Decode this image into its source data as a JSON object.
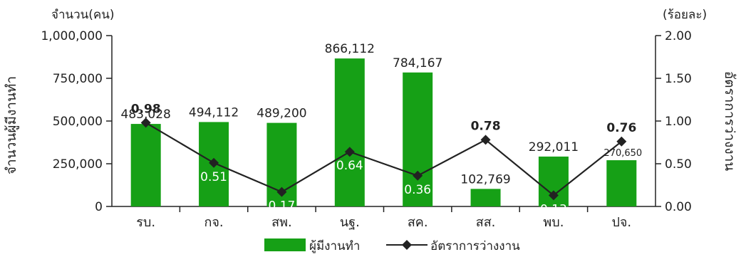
{
  "chart_data": {
    "type": "bar",
    "categories": [
      "รบ.",
      "กจ.",
      "สพ.",
      "นฐ.",
      "สค.",
      "สส.",
      "พบ.",
      "ปจ."
    ],
    "series": [
      {
        "name": "ผู้มีงานทำ",
        "type": "bar",
        "axis": "left",
        "values": [
          483028,
          494112,
          489200,
          866112,
          784167,
          102769,
          292011,
          270650
        ],
        "labels": [
          "483,028",
          "494,112",
          "489,200",
          "866,112",
          "784,167",
          "102,769",
          "292,011",
          "270,650"
        ],
        "color": "#16a016"
      },
      {
        "name": "อัตราการว่างงาน",
        "type": "line",
        "axis": "right",
        "values": [
          0.98,
          0.51,
          0.17,
          0.64,
          0.36,
          0.78,
          0.13,
          0.76
        ],
        "labels": [
          "0.98",
          "0.51",
          "0.17",
          "0.64",
          "0.36",
          "0.78",
          "0.13",
          "0.76"
        ],
        "color": "#222222"
      }
    ],
    "left_axis": {
      "unit": "จำนวน(คน)",
      "label": "จำนวนผู้มีงานทำ",
      "range": [
        0,
        1000000
      ],
      "ticks": [
        "0",
        "250,000",
        "500,000",
        "750,000",
        "1,000,000"
      ]
    },
    "right_axis": {
      "unit": "(ร้อยละ)",
      "label": "อัตราการว่างงาน",
      "range": [
        0,
        2
      ],
      "ticks": [
        "0.00",
        "0.50",
        "1.00",
        "1.50",
        "2.00"
      ]
    },
    "grid": false,
    "legend": "bottom-center"
  }
}
